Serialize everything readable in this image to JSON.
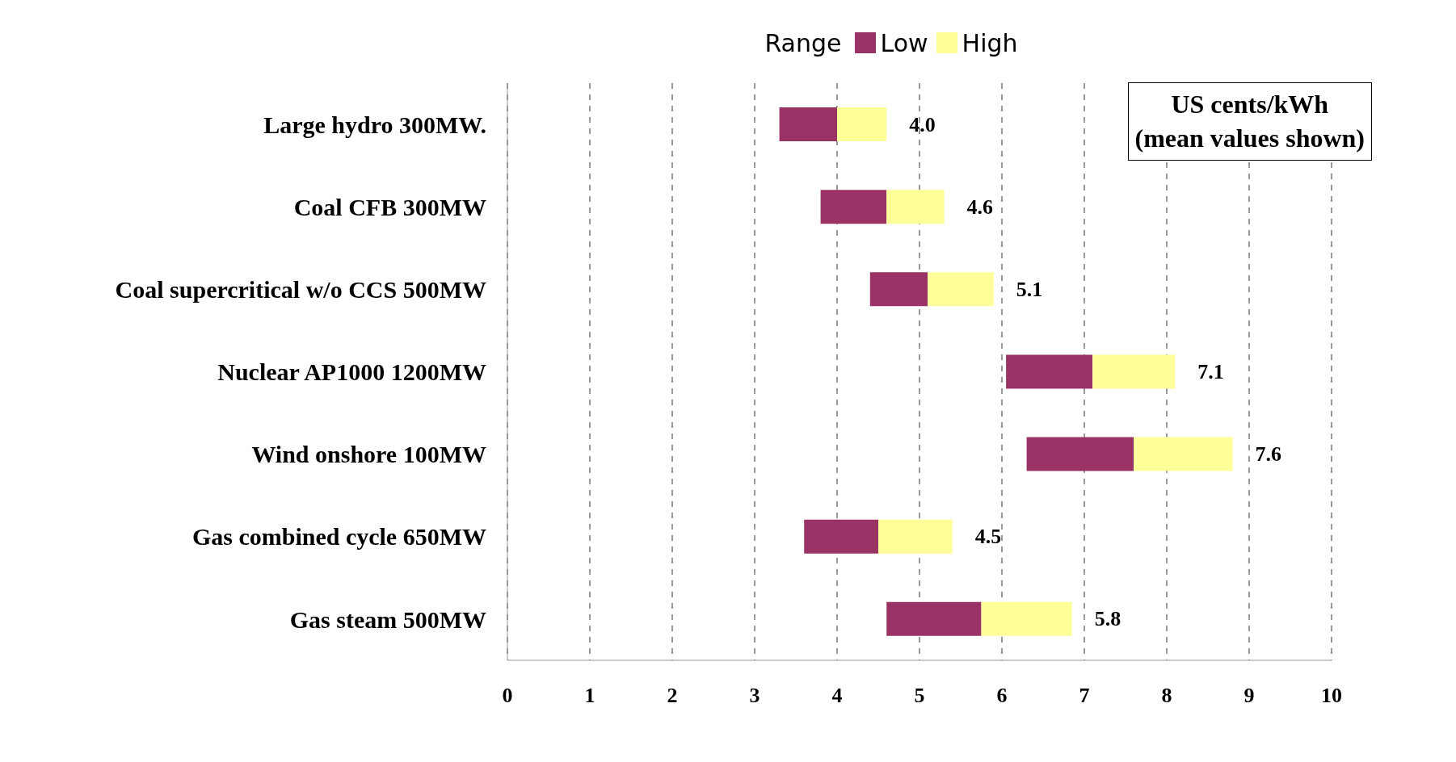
{
  "chart_data": {
    "type": "bar",
    "orientation": "horizontal",
    "categories": [
      "Large hydro 300MW.",
      "Coal CFB 300MW",
      "Coal supercritical w/o CCS 500MW",
      "Nuclear AP1000  1200MW",
      "Wind onshore 100MW",
      "Gas combined cycle 650MW",
      "Gas steam 500MW"
    ],
    "series": [
      {
        "name": "Low",
        "color": "#993366",
        "base": [
          3.3,
          3.8,
          4.4,
          6.05,
          6.3,
          3.6,
          4.6
        ],
        "values": [
          0.7,
          0.8,
          0.7,
          1.05,
          1.3,
          0.9,
          1.15
        ]
      },
      {
        "name": "High",
        "color": "#ffff99",
        "base": [
          4.0,
          4.6,
          5.1,
          7.1,
          7.6,
          4.5,
          5.75
        ],
        "values": [
          0.6,
          0.7,
          0.8,
          1.0,
          1.2,
          0.9,
          1.1
        ]
      }
    ],
    "xlim": [
      0,
      10
    ],
    "xticks": [
      0,
      1,
      2,
      3,
      4,
      5,
      6,
      7,
      8,
      9,
      10
    ],
    "grid": "x",
    "legend": "top",
    "legend_title": "Range",
    "annotations": [
      "US cents/kWh\n(mean values shown)",
      "4.0",
      "4.6",
      "5.1",
      "7.1",
      "7.6",
      "4.5",
      "5.8"
    ]
  }
}
